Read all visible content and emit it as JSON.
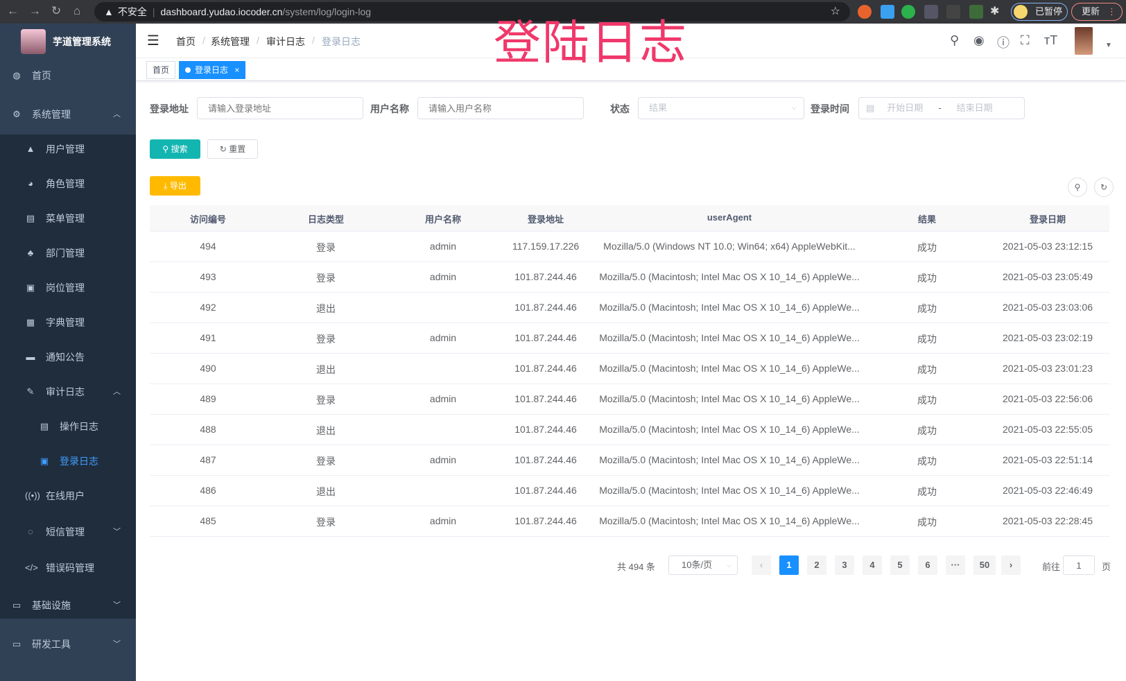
{
  "browser": {
    "security": "不安全",
    "url_host": "dashboard.yudao.iocoder.cn",
    "url_path": "/system/log/login-log",
    "paused_label": "已暂停",
    "update_label": "更新"
  },
  "overlay_title": "登陆日志",
  "sidebar": {
    "title": "芋道管理系统",
    "items": [
      {
        "label": "首页",
        "icon": "dashboard-icon",
        "level": 0
      },
      {
        "label": "系统管理",
        "icon": "gear-icon",
        "level": 0,
        "expanded": true
      },
      {
        "label": "用户管理",
        "icon": "user-icon",
        "level": 1
      },
      {
        "label": "角色管理",
        "icon": "role-icon",
        "level": 1
      },
      {
        "label": "菜单管理",
        "icon": "menu-tree-icon",
        "level": 1
      },
      {
        "label": "部门管理",
        "icon": "org-tree-icon",
        "level": 1
      },
      {
        "label": "岗位管理",
        "icon": "post-icon",
        "level": 1
      },
      {
        "label": "字典管理",
        "icon": "dict-icon",
        "level": 1
      },
      {
        "label": "通知公告",
        "icon": "message-icon",
        "level": 1
      },
      {
        "label": "审计日志",
        "icon": "edit-icon",
        "level": 1,
        "expanded": true
      },
      {
        "label": "操作日志",
        "icon": "form-icon",
        "level": 2
      },
      {
        "label": "登录日志",
        "icon": "logininfor-icon",
        "level": 2,
        "active": true
      },
      {
        "label": "在线用户",
        "icon": "online-icon",
        "level": 1
      },
      {
        "label": "短信管理",
        "icon": "validCode-icon",
        "level": 1,
        "expanded": false
      },
      {
        "label": "错误码管理",
        "icon": "code-icon",
        "level": 1
      },
      {
        "label": "基础设施",
        "icon": "monitor-icon",
        "level": 0,
        "expanded": false
      },
      {
        "label": "研发工具",
        "icon": "tool-icon",
        "level": 0,
        "expanded": false
      }
    ]
  },
  "breadcrumb": [
    "首页",
    "系统管理",
    "审计日志",
    "登录日志"
  ],
  "tags": [
    {
      "label": "首页"
    },
    {
      "label": "登录日志",
      "active": true
    }
  ],
  "filters": {
    "address": {
      "label": "登录地址",
      "placeholder": "请输入登录地址"
    },
    "username": {
      "label": "用户名称",
      "placeholder": "请输入用户名称"
    },
    "status": {
      "label": "状态",
      "placeholder": "结果"
    },
    "time": {
      "label": "登录时间",
      "start_placeholder": "开始日期",
      "sep": "-",
      "end_placeholder": "结束日期"
    }
  },
  "buttons": {
    "search": "搜索",
    "reset": "重置",
    "export": "导出"
  },
  "table": {
    "columns": [
      "访问编号",
      "日志类型",
      "用户名称",
      "登录地址",
      "userAgent",
      "结果",
      "登录日期"
    ],
    "rows": [
      [
        "494",
        "登录",
        "admin",
        "117.159.17.226",
        "Mozilla/5.0 (Windows NT 10.0; Win64; x64) AppleWebKit...",
        "成功",
        "2021-05-03 23:12:15"
      ],
      [
        "493",
        "登录",
        "admin",
        "101.87.244.46",
        "Mozilla/5.0 (Macintosh; Intel Mac OS X 10_14_6) AppleWe...",
        "成功",
        "2021-05-03 23:05:49"
      ],
      [
        "492",
        "退出",
        "",
        "101.87.244.46",
        "Mozilla/5.0 (Macintosh; Intel Mac OS X 10_14_6) AppleWe...",
        "成功",
        "2021-05-03 23:03:06"
      ],
      [
        "491",
        "登录",
        "admin",
        "101.87.244.46",
        "Mozilla/5.0 (Macintosh; Intel Mac OS X 10_14_6) AppleWe...",
        "成功",
        "2021-05-03 23:02:19"
      ],
      [
        "490",
        "退出",
        "",
        "101.87.244.46",
        "Mozilla/5.0 (Macintosh; Intel Mac OS X 10_14_6) AppleWe...",
        "成功",
        "2021-05-03 23:01:23"
      ],
      [
        "489",
        "登录",
        "admin",
        "101.87.244.46",
        "Mozilla/5.0 (Macintosh; Intel Mac OS X 10_14_6) AppleWe...",
        "成功",
        "2021-05-03 22:56:06"
      ],
      [
        "488",
        "退出",
        "",
        "101.87.244.46",
        "Mozilla/5.0 (Macintosh; Intel Mac OS X 10_14_6) AppleWe...",
        "成功",
        "2021-05-03 22:55:05"
      ],
      [
        "487",
        "登录",
        "admin",
        "101.87.244.46",
        "Mozilla/5.0 (Macintosh; Intel Mac OS X 10_14_6) AppleWe...",
        "成功",
        "2021-05-03 22:51:14"
      ],
      [
        "486",
        "退出",
        "",
        "101.87.244.46",
        "Mozilla/5.0 (Macintosh; Intel Mac OS X 10_14_6) AppleWe...",
        "成功",
        "2021-05-03 22:46:49"
      ],
      [
        "485",
        "登录",
        "admin",
        "101.87.244.46",
        "Mozilla/5.0 (Macintosh; Intel Mac OS X 10_14_6) AppleWe...",
        "成功",
        "2021-05-03 22:28:45"
      ]
    ]
  },
  "pagination": {
    "total": "共 494 条",
    "page_size": "10条/页",
    "pages": [
      "1",
      "2",
      "3",
      "4",
      "5",
      "6",
      "···",
      "50"
    ],
    "current": "1",
    "goto_prefix": "前往",
    "goto_value": "1",
    "goto_suffix": "页"
  },
  "colors": {
    "sidebar": "#304156",
    "submenu": "#1f2d3d",
    "accent": "#1890ff",
    "search": "#13b5b1",
    "export": "#ffba00",
    "overlay": "#f0386b"
  }
}
